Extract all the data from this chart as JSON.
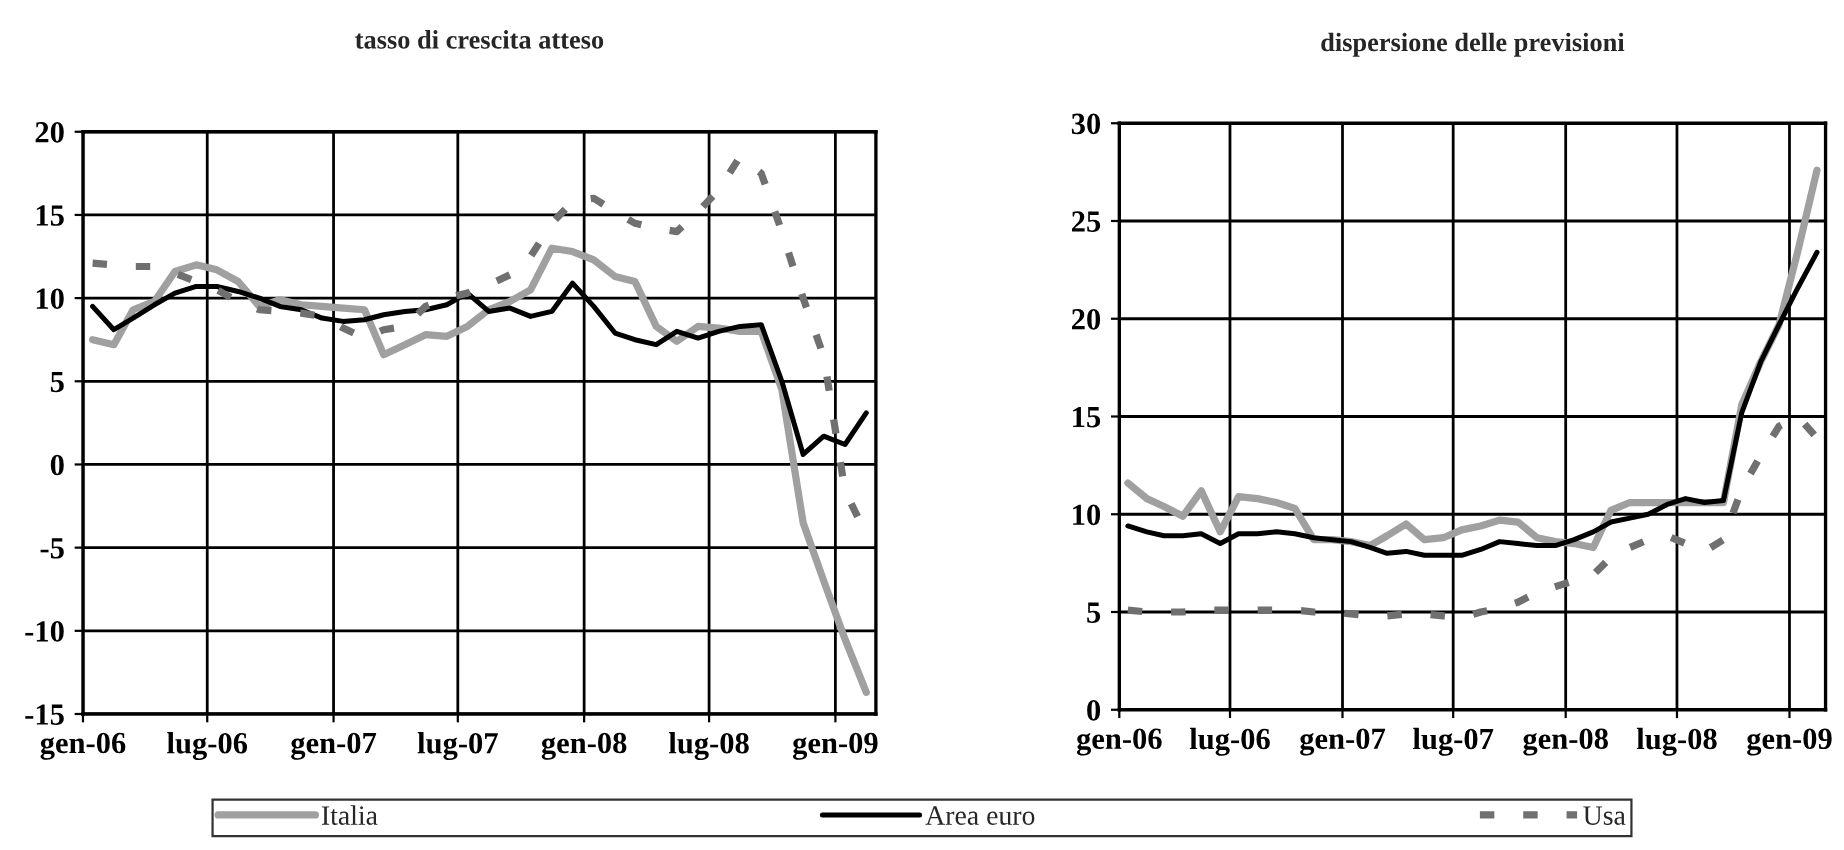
{
  "chart_data": [
    {
      "type": "line",
      "title": "tasso di crescita atteso",
      "x": [
        "2006-01-15",
        "2006-02-15",
        "2006-03-15",
        "2006-04-15",
        "2006-05-15",
        "2006-06-15",
        "2006-07-15",
        "2006-08-15",
        "2006-09-15",
        "2006-10-15",
        "2006-11-15",
        "2006-12-15",
        "2007-01-15",
        "2007-02-15",
        "2007-03-15",
        "2007-04-15",
        "2007-05-15",
        "2007-06-15",
        "2007-07-15",
        "2007-08-15",
        "2007-09-15",
        "2007-10-15",
        "2007-11-15",
        "2007-12-15",
        "2008-01-15",
        "2008-02-15",
        "2008-03-15",
        "2008-04-15",
        "2008-05-15",
        "2008-06-15",
        "2008-07-15",
        "2008-08-15",
        "2008-09-15",
        "2008-10-15",
        "2008-11-15",
        "2008-12-15",
        "2009-01-15",
        "2009-02-15"
      ],
      "series": [
        {
          "name": "Italia",
          "color": "#a0a0a0",
          "values": [
            7.5,
            7.2,
            9.3,
            9.8,
            11.6,
            12.0,
            11.7,
            11.0,
            9.5,
            9.9,
            9.6,
            9.5,
            9.4,
            9.3,
            6.6,
            7.2,
            7.8,
            7.7,
            8.3,
            9.3,
            9.8,
            10.5,
            13.0,
            12.8,
            12.3,
            11.3,
            11.0,
            8.3,
            7.4,
            8.3,
            8.2,
            8.0,
            8.0,
            4.5,
            -3.5,
            -7.0,
            -10.5,
            -13.7
          ]
        },
        {
          "name": "Area euro",
          "color": "#000000",
          "values": [
            9.5,
            8.1,
            8.8,
            9.6,
            10.3,
            10.7,
            10.7,
            10.4,
            10.0,
            9.5,
            9.3,
            8.8,
            8.6,
            8.7,
            9.0,
            9.2,
            9.3,
            9.6,
            10.3,
            9.2,
            9.4,
            8.9,
            9.2,
            10.9,
            9.5,
            7.9,
            7.5,
            7.2,
            8.0,
            7.6,
            8.0,
            8.3,
            8.4,
            5.0,
            0.6,
            1.7,
            1.2,
            3.1
          ]
        },
        {
          "name": "Usa",
          "color": "#707070",
          "line_style": "dashed",
          "values": [
            12.1,
            12.0,
            11.9,
            11.9,
            11.5,
            11.0,
            10.5,
            9.8,
            9.3,
            9.2,
            9.1,
            8.9,
            8.2,
            7.6,
            8.1,
            8.3,
            9.5,
            10.0,
            10.3,
            10.8,
            11.4,
            12.5,
            14.5,
            15.8,
            16.0,
            15.2,
            14.5,
            14.2,
            14.0,
            15.2,
            16.5,
            18.5,
            17.5,
            14.0,
            10.0,
            6.5,
            -1.6,
            -4.2
          ]
        }
      ],
      "xlim": [
        "2006-01-01",
        "2009-03-01"
      ],
      "xticks": [
        {
          "value": "2006-01-01",
          "label": "gen-06"
        },
        {
          "value": "2006-07-01",
          "label": "lug-06"
        },
        {
          "value": "2007-01-01",
          "label": "gen-07"
        },
        {
          "value": "2007-07-01",
          "label": "lug-07"
        },
        {
          "value": "2008-01-01",
          "label": "gen-08"
        },
        {
          "value": "2008-07-01",
          "label": "lug-08"
        },
        {
          "value": "2009-01-01",
          "label": "gen-09"
        }
      ],
      "ylim": [
        -15,
        20
      ],
      "yticks": [
        -15,
        -10,
        -5,
        0,
        5,
        10,
        15,
        20
      ],
      "grid": true,
      "legend": "bottom"
    },
    {
      "type": "line",
      "title": "dispersione delle previsioni",
      "x": [
        "2006-01-15",
        "2006-02-15",
        "2006-03-15",
        "2006-04-15",
        "2006-05-15",
        "2006-06-15",
        "2006-07-15",
        "2006-08-15",
        "2006-09-15",
        "2006-10-15",
        "2006-11-15",
        "2006-12-15",
        "2007-01-15",
        "2007-02-15",
        "2007-03-15",
        "2007-04-15",
        "2007-05-15",
        "2007-06-15",
        "2007-07-15",
        "2007-08-15",
        "2007-09-15",
        "2007-10-15",
        "2007-11-15",
        "2007-12-15",
        "2008-01-15",
        "2008-02-15",
        "2008-03-15",
        "2008-04-15",
        "2008-05-15",
        "2008-06-15",
        "2008-07-15",
        "2008-08-15",
        "2008-09-15",
        "2008-10-15",
        "2008-11-15",
        "2008-12-15",
        "2009-01-15",
        "2009-02-15"
      ],
      "series": [
        {
          "name": "Italia",
          "color": "#a0a0a0",
          "values": [
            11.6,
            10.8,
            10.4,
            9.9,
            11.2,
            9.1,
            10.9,
            10.8,
            10.6,
            10.3,
            8.7,
            8.7,
            8.6,
            8.4,
            8.9,
            9.5,
            8.7,
            8.8,
            9.2,
            9.4,
            9.7,
            9.6,
            8.8,
            8.6,
            8.5,
            8.3,
            10.2,
            10.6,
            10.6,
            10.6,
            10.6,
            10.6,
            10.6,
            15.6,
            17.8,
            19.7,
            23.5,
            27.6
          ]
        },
        {
          "name": "Area euro",
          "color": "#000000",
          "values": [
            9.4,
            9.1,
            8.9,
            8.9,
            9.0,
            8.5,
            9.0,
            9.0,
            9.1,
            9.0,
            8.8,
            8.7,
            8.6,
            8.3,
            8.0,
            8.1,
            7.9,
            7.9,
            7.9,
            8.2,
            8.6,
            8.5,
            8.4,
            8.4,
            8.7,
            9.1,
            9.6,
            9.8,
            10.0,
            10.5,
            10.8,
            10.6,
            10.7,
            15.2,
            17.8,
            19.7,
            21.6,
            23.4
          ]
        },
        {
          "name": "Usa",
          "color": "#707070",
          "line_style": "dashed",
          "values": [
            5.1,
            5.0,
            5.0,
            5.0,
            5.1,
            5.1,
            5.1,
            5.1,
            5.1,
            5.1,
            5.0,
            5.0,
            4.9,
            4.8,
            4.8,
            4.9,
            4.9,
            4.8,
            4.7,
            5.0,
            5.2,
            5.5,
            6.0,
            6.3,
            6.6,
            6.9,
            7.8,
            8.3,
            8.7,
            8.9,
            8.5,
            8.1,
            8.7,
            11.3,
            13.0,
            14.5,
            15.0,
            13.9
          ]
        }
      ],
      "xlim": [
        "2006-01-01",
        "2009-03-01"
      ],
      "xticks": [
        {
          "value": "2006-01-01",
          "label": "gen-06"
        },
        {
          "value": "2006-07-01",
          "label": "lug-06"
        },
        {
          "value": "2007-01-01",
          "label": "gen-07"
        },
        {
          "value": "2007-07-01",
          "label": "lug-07"
        },
        {
          "value": "2008-01-01",
          "label": "gen-08"
        },
        {
          "value": "2008-07-01",
          "label": "lug-08"
        },
        {
          "value": "2009-01-01",
          "label": "gen-09"
        }
      ],
      "ylim": [
        0,
        30
      ],
      "yticks": [
        0,
        5,
        10,
        15,
        20,
        25,
        30
      ],
      "grid": true,
      "legend": "bottom"
    }
  ]
}
